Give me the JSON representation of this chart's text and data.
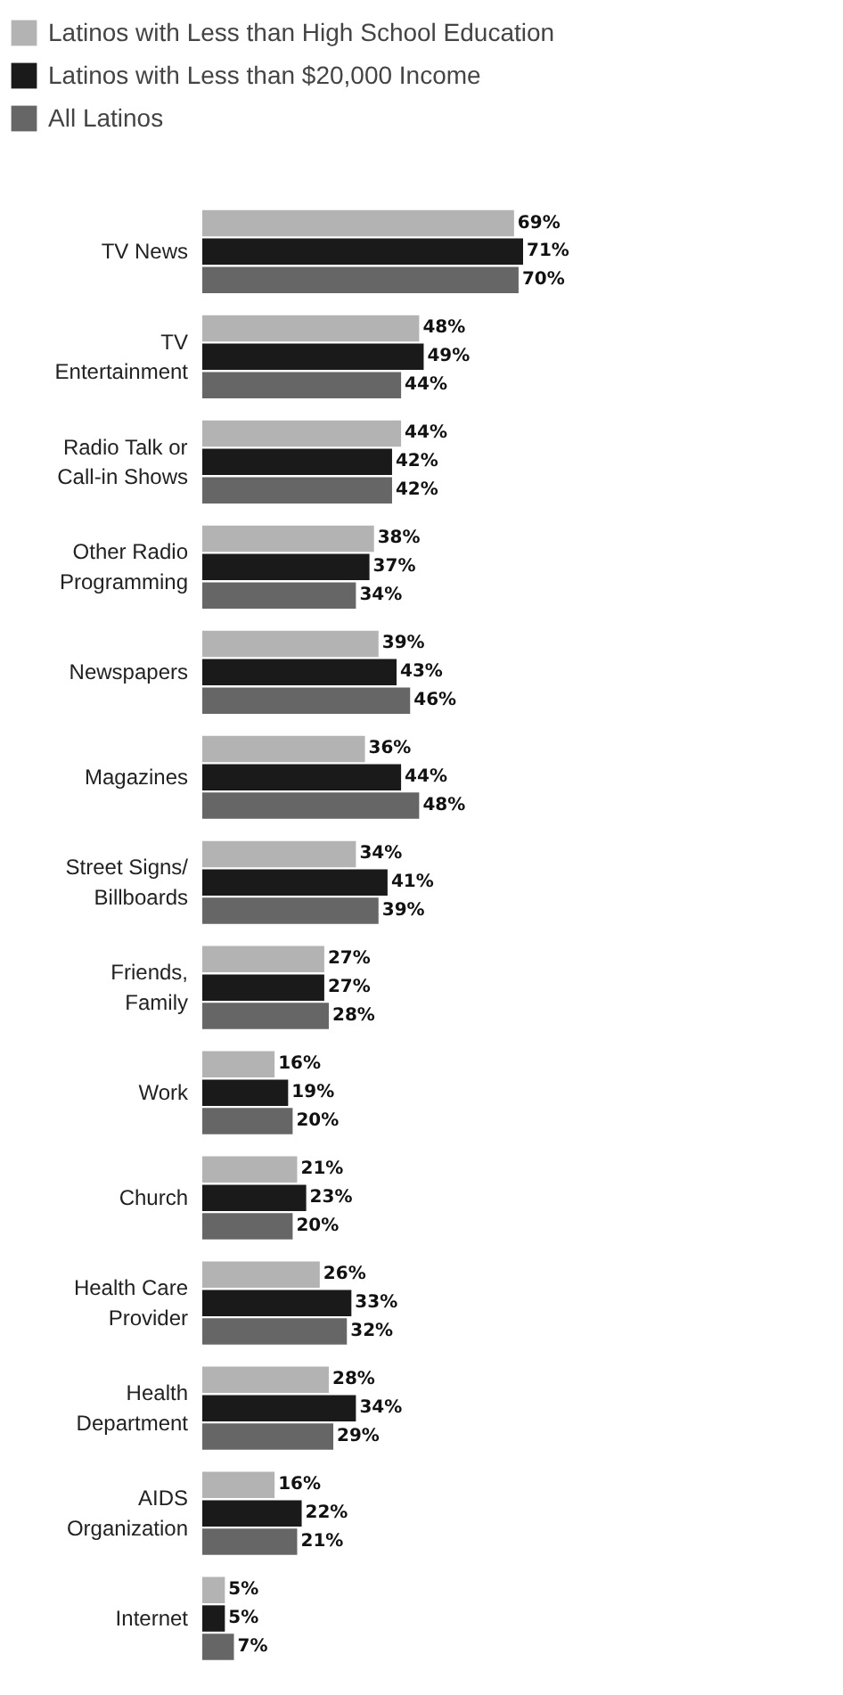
{
  "chart_data": {
    "type": "bar",
    "orientation": "horizontal",
    "legend": "top",
    "grid": false,
    "categories": [
      "TV News",
      "TV\nEntertainment",
      "Radio Talk or\nCall-in Shows",
      "Other Radio\nProgramming",
      "Newspapers",
      "Magazines",
      "Street Signs/\nBillboards",
      "Friends,\nFamily",
      "Work",
      "Church",
      "Health Care\nProvider",
      "Health\nDepartment",
      "AIDS\nOrganization",
      "Internet"
    ],
    "series": [
      {
        "name": "Latinos with Less than High School Education",
        "color": "#b3b3b3",
        "values": [
          69,
          48,
          44,
          38,
          39,
          36,
          34,
          27,
          16,
          21,
          26,
          28,
          16,
          5
        ],
        "value_labels": [
          "69%",
          "48%",
          "44%",
          "38%",
          "39%",
          "36%",
          "34%",
          "27%",
          "16%",
          "21%",
          "26%",
          "28%",
          "16%",
          "5%"
        ]
      },
      {
        "name": "Latinos with Less than $20,000 Income",
        "color": "#1a1a1a",
        "values": [
          71,
          49,
          42,
          37,
          43,
          44,
          41,
          27,
          19,
          23,
          33,
          34,
          22,
          5
        ],
        "value_labels": [
          "71%",
          "49%",
          "42%",
          "37%",
          "43%",
          "44%",
          "41%",
          "27%",
          "19%",
          "23%",
          "33%",
          "34%",
          "22%",
          "5%"
        ]
      },
      {
        "name": "All Latinos",
        "color": "#666666",
        "values": [
          70,
          44,
          42,
          34,
          46,
          48,
          39,
          28,
          20,
          20,
          32,
          29,
          21,
          7
        ],
        "value_labels": [
          "70%",
          "44%",
          "42%",
          "34%",
          "46%",
          "48%",
          "39%",
          "28%",
          "20%",
          "20%",
          "32%",
          "29%",
          "21%",
          "7%"
        ]
      }
    ]
  }
}
